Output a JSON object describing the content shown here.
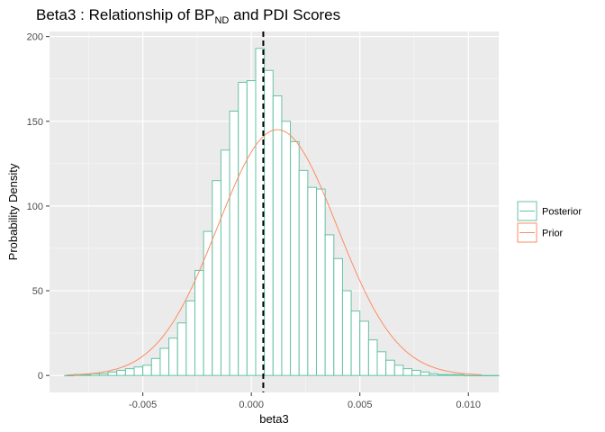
{
  "chart_data": {
    "type": "bar",
    "title_main": "Beta3 : Relationship of BP",
    "title_sub": "ND",
    "title_tail": " and PDI Scores",
    "xlabel": "beta3",
    "ylabel": "Probability Density",
    "xlim": [
      -0.0093,
      0.0114
    ],
    "ylim": [
      -10,
      203
    ],
    "x_ticks": [
      -0.005,
      0.0,
      0.005,
      0.01
    ],
    "x_tick_labels": [
      "-0.005",
      "0.000",
      "0.005",
      "0.010"
    ],
    "y_ticks": [
      0,
      50,
      100,
      150,
      200
    ],
    "y_tick_labels": [
      "0",
      "50",
      "100",
      "150",
      "200"
    ],
    "grid": true,
    "legend_position": "right",
    "vline_x": 0.00055,
    "series": [
      {
        "name": "Posterior",
        "kind": "histogram",
        "color": "#66c2a5",
        "bin_width": 0.0004,
        "bin_left_start": -0.0086,
        "values": [
          0,
          0.5,
          0.5,
          1,
          1,
          2,
          3,
          4,
          5,
          6,
          10,
          16,
          22,
          31,
          44,
          62,
          85,
          115,
          133,
          156,
          173,
          174,
          193,
          180,
          165,
          150,
          138,
          121,
          111,
          110,
          83,
          69,
          50,
          38,
          32,
          21,
          14,
          9,
          6,
          4,
          3,
          2,
          1,
          0.5,
          0.5,
          0.5,
          0,
          0,
          0,
          0
        ]
      },
      {
        "name": "Prior",
        "kind": "density_line",
        "color": "#fc8d62",
        "mean": 0.0012,
        "sd": 0.00275,
        "x_min": -0.0085,
        "x_max": 0.0106
      }
    ]
  }
}
